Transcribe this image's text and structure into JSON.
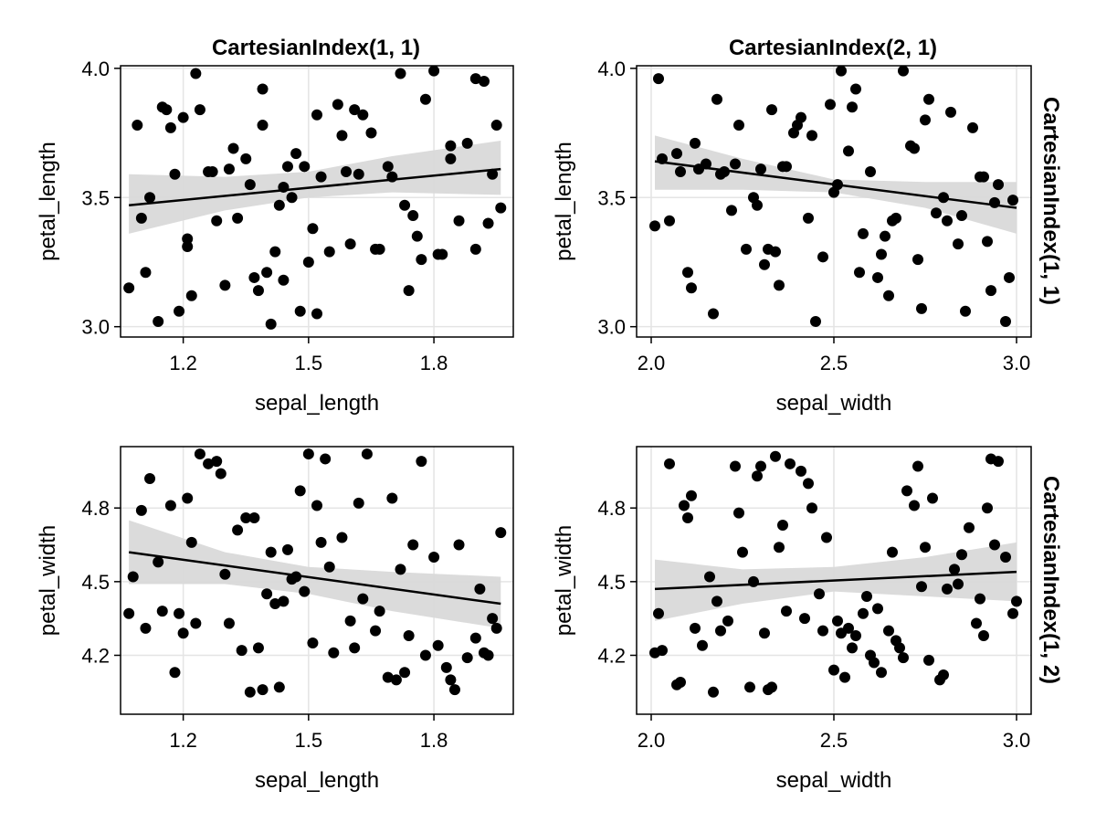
{
  "column_titles": [
    "CartesianIndex(1, 1)",
    "CartesianIndex(2, 1)"
  ],
  "row_titles": [
    "CartesianIndex(1, 1)",
    "CartesianIndex(1, 2)"
  ],
  "colors": {
    "points": "#000000",
    "line": "#000000",
    "band": "#d9d9d9",
    "grid": "#e4e4e4",
    "frame": "#000000"
  },
  "chart_data": [
    {
      "type": "scatter",
      "panel": "top-left",
      "xlabel": "sepal_length",
      "ylabel": "petal_length",
      "xlim": [
        1.05,
        1.99
      ],
      "ylim": [
        2.96,
        4.01
      ],
      "xticks": [
        "1.2",
        "1.5",
        "1.8"
      ],
      "yticks": [
        "3.0",
        "3.5",
        "4.0"
      ],
      "grid": true,
      "x": [
        1.07,
        1.09,
        1.1,
        1.11,
        1.12,
        1.14,
        1.16,
        1.17,
        1.18,
        1.19,
        1.2,
        1.21,
        1.21,
        1.22,
        1.24,
        1.26,
        1.28,
        1.3,
        1.32,
        1.33,
        1.36,
        1.37,
        1.38,
        1.39,
        1.4,
        1.41,
        1.42,
        1.43,
        1.44,
        1.45,
        1.46,
        1.47,
        1.48,
        1.5,
        1.51,
        1.52,
        1.53,
        1.55,
        1.57,
        1.59,
        1.6,
        1.62,
        1.63,
        1.65,
        1.67,
        1.69,
        1.7,
        1.72,
        1.74,
        1.75,
        1.77,
        1.78,
        1.8,
        1.82,
        1.84,
        1.86,
        1.88,
        1.9,
        1.92,
        1.93,
        1.95,
        1.96,
        1.23,
        1.31,
        1.35,
        1.44,
        1.52,
        1.58,
        1.66,
        1.76,
        1.84,
        1.9,
        1.15,
        1.27,
        1.39,
        1.49,
        1.61,
        1.73,
        1.81,
        1.94
      ],
      "y": [
        3.15,
        3.78,
        3.42,
        3.21,
        3.5,
        3.02,
        3.84,
        3.77,
        3.59,
        3.06,
        3.81,
        3.34,
        3.31,
        3.12,
        3.84,
        3.6,
        3.41,
        3.16,
        3.69,
        3.42,
        3.55,
        3.19,
        3.14,
        3.92,
        3.21,
        3.01,
        3.29,
        3.47,
        3.18,
        3.62,
        3.5,
        3.67,
        3.06,
        3.25,
        3.38,
        3.82,
        3.58,
        3.29,
        3.86,
        3.6,
        3.32,
        3.59,
        3.82,
        3.75,
        3.3,
        3.62,
        3.58,
        3.98,
        3.14,
        3.43,
        3.26,
        3.88,
        3.99,
        3.28,
        3.7,
        3.41,
        3.71,
        3.3,
        3.95,
        3.4,
        3.78,
        3.46,
        3.98,
        3.61,
        3.65,
        3.54,
        3.05,
        3.74,
        3.3,
        3.35,
        3.65,
        3.96,
        3.85,
        3.6,
        3.78,
        3.62,
        3.84,
        3.47,
        3.28,
        3.59
      ],
      "fit": {
        "x": [
          1.07,
          1.96
        ],
        "y": [
          3.47,
          3.61
        ]
      },
      "band": {
        "x": [
          1.07,
          1.3,
          1.5,
          1.7,
          1.96
        ],
        "lower": [
          3.36,
          3.45,
          3.5,
          3.52,
          3.51
        ],
        "upper": [
          3.59,
          3.58,
          3.6,
          3.66,
          3.72
        ]
      }
    },
    {
      "type": "scatter",
      "panel": "top-right",
      "xlabel": "sepal_width",
      "ylabel": "petal_length",
      "xlim": [
        1.96,
        3.04
      ],
      "ylim": [
        2.96,
        4.01
      ],
      "xticks": [
        "2.0",
        "2.5",
        "3.0"
      ],
      "yticks": [
        "3.0",
        "3.5",
        "4.0"
      ],
      "grid": true,
      "x": [
        2.01,
        2.02,
        2.03,
        2.05,
        2.08,
        2.1,
        2.11,
        2.13,
        2.15,
        2.17,
        2.18,
        2.2,
        2.22,
        2.24,
        2.26,
        2.28,
        2.3,
        2.31,
        2.33,
        2.34,
        2.35,
        2.37,
        2.39,
        2.41,
        2.43,
        2.45,
        2.47,
        2.49,
        2.51,
        2.52,
        2.54,
        2.56,
        2.58,
        2.6,
        2.62,
        2.63,
        2.65,
        2.67,
        2.69,
        2.71,
        2.73,
        2.74,
        2.76,
        2.78,
        2.8,
        2.82,
        2.84,
        2.86,
        2.88,
        2.9,
        2.92,
        2.93,
        2.95,
        2.97,
        2.99,
        2.07,
        2.19,
        2.29,
        2.36,
        2.44,
        2.55,
        2.66,
        2.72,
        2.81,
        2.91,
        2.98,
        2.12,
        2.23,
        2.32,
        2.4,
        2.5,
        2.57,
        2.64,
        2.75,
        2.85,
        2.94
      ],
      "y": [
        3.39,
        3.96,
        3.65,
        3.41,
        3.6,
        3.21,
        3.15,
        3.61,
        3.63,
        3.05,
        3.88,
        3.6,
        3.45,
        3.78,
        3.3,
        3.5,
        3.61,
        3.24,
        3.84,
        3.29,
        3.16,
        3.62,
        3.75,
        3.81,
        3.42,
        3.02,
        3.27,
        3.86,
        3.55,
        3.99,
        3.68,
        3.92,
        3.36,
        3.6,
        3.19,
        3.28,
        3.12,
        3.42,
        3.99,
        3.7,
        3.26,
        3.07,
        3.88,
        3.44,
        3.5,
        3.83,
        3.32,
        3.06,
        3.77,
        3.58,
        3.33,
        3.14,
        3.55,
        3.02,
        3.49,
        3.67,
        3.59,
        3.47,
        3.62,
        3.74,
        3.85,
        3.41,
        3.69,
        3.41,
        3.58,
        3.19,
        3.71,
        3.63,
        3.3,
        3.78,
        3.52,
        3.21,
        3.35,
        3.8,
        3.43,
        3.48
      ],
      "fit": {
        "x": [
          2.01,
          3.0
        ],
        "y": [
          3.64,
          3.46
        ]
      },
      "band": {
        "x": [
          2.01,
          2.25,
          2.5,
          2.75,
          3.0
        ],
        "lower": [
          3.53,
          3.53,
          3.52,
          3.46,
          3.36
        ],
        "upper": [
          3.74,
          3.65,
          3.57,
          3.56,
          3.56
        ]
      }
    },
    {
      "type": "scatter",
      "panel": "bottom-left",
      "xlabel": "sepal_length",
      "ylabel": "petal_width",
      "xlim": [
        1.05,
        1.99
      ],
      "ylim": [
        3.96,
        5.05
      ],
      "xticks": [
        "1.2",
        "1.5",
        "1.8"
      ],
      "yticks": [
        "4.2",
        "4.5",
        "4.8"
      ],
      "grid": true,
      "x": [
        1.07,
        1.08,
        1.1,
        1.11,
        1.12,
        1.14,
        1.15,
        1.17,
        1.18,
        1.2,
        1.21,
        1.22,
        1.23,
        1.24,
        1.26,
        1.28,
        1.3,
        1.31,
        1.33,
        1.34,
        1.36,
        1.37,
        1.38,
        1.39,
        1.4,
        1.41,
        1.42,
        1.43,
        1.44,
        1.45,
        1.46,
        1.48,
        1.49,
        1.5,
        1.51,
        1.52,
        1.53,
        1.55,
        1.56,
        1.58,
        1.6,
        1.61,
        1.63,
        1.64,
        1.66,
        1.67,
        1.69,
        1.7,
        1.71,
        1.72,
        1.74,
        1.75,
        1.77,
        1.78,
        1.8,
        1.81,
        1.83,
        1.84,
        1.86,
        1.88,
        1.9,
        1.91,
        1.92,
        1.94,
        1.95,
        1.96,
        1.19,
        1.29,
        1.35,
        1.47,
        1.54,
        1.62,
        1.73,
        1.85,
        1.93
      ],
      "y": [
        4.37,
        4.52,
        4.79,
        4.31,
        4.92,
        4.58,
        4.38,
        4.81,
        4.13,
        4.29,
        4.84,
        4.66,
        4.33,
        5.02,
        4.98,
        4.99,
        4.53,
        4.33,
        4.71,
        4.22,
        4.05,
        4.76,
        4.23,
        4.06,
        4.45,
        4.62,
        4.41,
        4.07,
        4.42,
        4.63,
        4.51,
        4.87,
        4.46,
        5.02,
        4.25,
        4.81,
        4.66,
        4.56,
        4.21,
        4.68,
        4.34,
        4.23,
        4.43,
        5.02,
        4.3,
        4.38,
        4.11,
        4.84,
        4.1,
        4.55,
        4.28,
        4.65,
        4.99,
        4.2,
        4.6,
        4.24,
        4.15,
        4.1,
        4.65,
        4.19,
        4.27,
        4.47,
        4.21,
        4.35,
        4.31,
        4.7,
        4.37,
        4.94,
        4.76,
        4.52,
        5.0,
        4.82,
        4.13,
        4.06,
        4.2
      ],
      "fit": {
        "x": [
          1.07,
          1.96
        ],
        "y": [
          4.62,
          4.41
        ]
      },
      "band": {
        "x": [
          1.07,
          1.3,
          1.5,
          1.7,
          1.96
        ],
        "lower": [
          4.49,
          4.49,
          4.45,
          4.38,
          4.31
        ],
        "upper": [
          4.75,
          4.62,
          4.56,
          4.54,
          4.52
        ]
      }
    },
    {
      "type": "scatter",
      "panel": "bottom-right",
      "xlabel": "sepal_width",
      "ylabel": "petal_width",
      "xlim": [
        1.96,
        3.04
      ],
      "ylim": [
        3.96,
        5.05
      ],
      "xticks": [
        "2.0",
        "2.5",
        "3.0"
      ],
      "yticks": [
        "4.2",
        "4.5",
        "4.8"
      ],
      "grid": true,
      "x": [
        2.01,
        2.02,
        2.03,
        2.05,
        2.08,
        2.09,
        2.1,
        2.12,
        2.14,
        2.16,
        2.17,
        2.18,
        2.21,
        2.23,
        2.25,
        2.27,
        2.28,
        2.3,
        2.31,
        2.32,
        2.34,
        2.35,
        2.37,
        2.38,
        2.41,
        2.43,
        2.44,
        2.46,
        2.48,
        2.5,
        2.51,
        2.53,
        2.55,
        2.56,
        2.58,
        2.6,
        2.61,
        2.63,
        2.65,
        2.67,
        2.69,
        2.7,
        2.72,
        2.74,
        2.75,
        2.77,
        2.79,
        2.81,
        2.83,
        2.85,
        2.87,
        2.89,
        2.91,
        2.92,
        2.93,
        2.95,
        2.97,
        2.99,
        2.07,
        2.19,
        2.29,
        2.36,
        2.47,
        2.54,
        2.62,
        2.68,
        2.76,
        2.84,
        2.94,
        3.0,
        2.11,
        2.24,
        2.33,
        2.42,
        2.52,
        2.59,
        2.66,
        2.73,
        2.8,
        2.9
      ],
      "y": [
        4.21,
        4.37,
        4.22,
        4.98,
        4.09,
        4.81,
        4.76,
        4.31,
        4.24,
        4.52,
        4.05,
        4.42,
        4.34,
        4.97,
        4.62,
        4.07,
        4.5,
        4.97,
        4.29,
        4.06,
        5.01,
        4.64,
        4.38,
        4.98,
        4.95,
        4.9,
        4.8,
        4.45,
        4.68,
        4.14,
        4.34,
        4.11,
        4.23,
        4.28,
        4.37,
        4.2,
        4.17,
        4.13,
        4.3,
        4.26,
        4.19,
        4.87,
        4.81,
        4.48,
        4.64,
        4.84,
        4.1,
        4.47,
        4.55,
        4.61,
        4.72,
        4.33,
        4.28,
        4.8,
        5.0,
        4.99,
        4.6,
        4.37,
        4.08,
        4.3,
        4.93,
        4.73,
        4.3,
        4.31,
        4.39,
        4.23,
        4.18,
        4.49,
        4.65,
        4.42,
        4.85,
        4.78,
        4.07,
        4.35,
        4.29,
        4.44,
        4.62,
        4.97,
        4.12,
        4.43
      ],
      "fit": {
        "x": [
          2.01,
          3.0
        ],
        "y": [
          4.47,
          4.54
        ]
      },
      "band": {
        "x": [
          2.01,
          2.25,
          2.5,
          2.75,
          3.0
        ],
        "lower": [
          4.34,
          4.41,
          4.46,
          4.44,
          4.42
        ],
        "upper": [
          4.59,
          4.55,
          4.56,
          4.6,
          4.66
        ]
      }
    }
  ]
}
